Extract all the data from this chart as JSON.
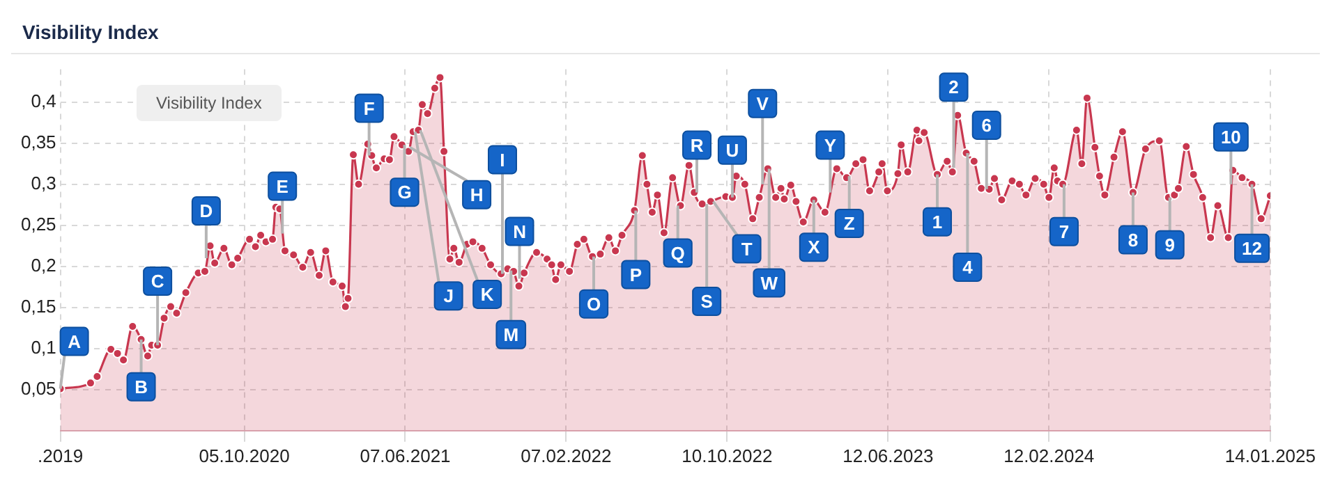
{
  "chart_data": {
    "type": "area",
    "title": "Visibility Index",
    "xlim": [
      "2019-12-30",
      "2025-01-14"
    ],
    "ylim": [
      0,
      0.44
    ],
    "xticks": [
      {
        "value": "2019-12-30",
        "label": ".2019"
      },
      {
        "value": "2020-10-05",
        "label": "05.10.2020"
      },
      {
        "value": "2021-06-07",
        "label": "07.06.2021"
      },
      {
        "value": "2022-02-07",
        "label": "07.02.2022"
      },
      {
        "value": "2022-10-10",
        "label": "10.10.2022"
      },
      {
        "value": "2023-06-12",
        "label": "12.06.2023"
      },
      {
        "value": "2024-02-12",
        "label": "12.02.2024"
      },
      {
        "value": "2025-01-14",
        "label": "14.01.2025"
      }
    ],
    "yticks": [
      {
        "value": 0.05,
        "label": "0,05"
      },
      {
        "value": 0.1,
        "label": "0,1"
      },
      {
        "value": 0.15,
        "label": "0,15"
      },
      {
        "value": 0.2,
        "label": "0,2"
      },
      {
        "value": 0.25,
        "label": "0,25"
      },
      {
        "value": 0.3,
        "label": "0,3"
      },
      {
        "value": 0.35,
        "label": "0,35"
      },
      {
        "value": 0.4,
        "label": "0,4"
      }
    ],
    "grid": true,
    "marker": "circle",
    "line_style": "solid",
    "x": [
      "2019-12-30",
      "2020-02-14",
      "2020-02-24",
      "2020-03-16",
      "2020-03-26",
      "2020-04-04",
      "2020-04-18",
      "2020-05-01",
      "2020-05-11",
      "2020-05-17",
      "2020-05-26",
      "2020-06-05",
      "2020-06-15",
      "2020-06-24",
      "2020-07-08",
      "2020-07-27",
      "2020-08-06",
      "2020-08-14",
      "2020-08-21",
      "2020-09-04",
      "2020-09-16",
      "2020-09-25",
      "2020-10-13",
      "2020-10-22",
      "2020-10-30",
      "2020-11-07",
      "2020-11-17",
      "2020-11-22",
      "2020-11-28",
      "2020-12-06",
      "2020-12-19",
      "2021-01-02",
      "2021-01-14",
      "2021-01-27",
      "2021-02-06",
      "2021-02-17",
      "2021-03-03",
      "2021-03-08",
      "2021-03-12",
      "2021-03-20",
      "2021-03-28",
      "2021-04-11",
      "2021-04-17",
      "2021-04-24",
      "2021-05-06",
      "2021-05-14",
      "2021-05-21",
      "2021-06-02",
      "2021-06-12",
      "2021-06-19",
      "2021-06-27",
      "2021-07-03",
      "2021-07-11",
      "2021-07-22",
      "2021-07-30",
      "2021-08-05",
      "2021-08-14",
      "2021-08-20",
      "2021-08-28",
      "2021-09-09",
      "2021-09-18",
      "2021-10-02",
      "2021-10-15",
      "2021-10-31",
      "2021-11-10",
      "2021-11-19",
      "2021-11-27",
      "2021-12-05",
      "2021-12-24",
      "2022-01-09",
      "2022-01-16",
      "2022-01-22",
      "2022-01-30",
      "2022-02-12",
      "2022-02-24",
      "2022-03-06",
      "2022-03-19",
      "2022-03-31",
      "2022-04-13",
      "2022-04-23",
      "2022-05-03",
      "2022-05-22",
      "2022-06-03",
      "2022-06-10",
      "2022-06-18",
      "2022-06-26",
      "2022-07-06",
      "2022-07-19",
      "2022-07-31",
      "2022-08-13",
      "2022-08-21",
      "2022-09-02",
      "2022-09-15",
      "2022-10-08",
      "2022-10-18",
      "2022-10-24",
      "2022-11-06",
      "2022-11-18",
      "2022-11-28",
      "2022-12-11",
      "2022-12-23",
      "2022-12-31",
      "2023-01-05",
      "2023-01-15",
      "2023-01-23",
      "2023-02-03",
      "2023-02-19",
      "2023-03-08",
      "2023-03-26",
      "2023-04-10",
      "2023-04-24",
      "2023-05-05",
      "2023-05-15",
      "2023-05-29",
      "2023-06-03",
      "2023-06-11",
      "2023-06-27",
      "2023-07-02",
      "2023-07-12",
      "2023-07-26",
      "2023-07-29",
      "2023-08-06",
      "2023-08-26",
      "2023-09-10",
      "2023-09-18",
      "2023-09-26",
      "2023-10-09",
      "2023-10-21",
      "2023-11-01",
      "2023-11-13",
      "2023-11-21",
      "2023-12-02",
      "2023-12-18",
      "2023-12-29",
      "2024-01-08",
      "2024-01-22",
      "2024-02-04",
      "2024-02-12",
      "2024-02-20",
      "2024-02-25",
      "2024-03-04",
      "2024-03-25",
      "2024-04-02",
      "2024-04-10",
      "2024-04-22",
      "2024-04-29",
      "2024-05-07",
      "2024-05-21",
      "2024-06-03",
      "2024-06-19",
      "2024-07-08",
      "2024-07-29",
      "2024-08-12",
      "2024-08-21",
      "2024-08-27",
      "2024-09-08",
      "2024-09-19",
      "2024-10-03",
      "2024-10-15",
      "2024-10-26",
      "2024-11-11",
      "2024-11-18",
      "2024-12-02",
      "2024-12-17",
      "2024-12-31",
      "2025-01-14"
    ],
    "series": [
      {
        "color": "#c8374f",
        "values": [
          0.051,
          0.058,
          0.066,
          0.099,
          0.094,
          0.086,
          0.127,
          0.111,
          0.091,
          0.104,
          0.104,
          0.137,
          0.151,
          0.143,
          0.168,
          0.192,
          0.194,
          0.225,
          0.204,
          0.222,
          0.202,
          0.21,
          0.233,
          0.224,
          0.238,
          0.23,
          0.233,
          0.272,
          0.27,
          0.219,
          0.214,
          0.199,
          0.217,
          0.189,
          0.219,
          0.181,
          0.176,
          0.151,
          0.161,
          0.336,
          0.3,
          0.349,
          0.335,
          0.32,
          0.331,
          0.33,
          0.358,
          0.348,
          0.34,
          0.364,
          0.366,
          0.397,
          0.386,
          0.417,
          0.43,
          0.34,
          0.209,
          0.222,
          0.205,
          0.227,
          0.23,
          0.222,
          0.202,
          0.191,
          0.197,
          0.194,
          0.176,
          0.192,
          0.217,
          0.209,
          0.202,
          0.184,
          0.202,
          0.194,
          0.227,
          0.233,
          0.212,
          0.215,
          0.235,
          0.219,
          0.238,
          0.268,
          0.335,
          0.3,
          0.266,
          0.287,
          0.241,
          0.308,
          0.274,
          0.323,
          0.29,
          0.276,
          0.279,
          0.285,
          0.284,
          0.31,
          0.3,
          0.258,
          0.284,
          0.319,
          0.284,
          0.295,
          0.282,
          0.299,
          0.279,
          0.254,
          0.281,
          0.266,
          0.319,
          0.308,
          0.325,
          0.33,
          0.292,
          0.315,
          0.325,
          0.292,
          0.313,
          0.348,
          0.315,
          0.366,
          0.353,
          0.363,
          0.312,
          0.328,
          0.315,
          0.384,
          0.338,
          0.328,
          0.295,
          0.294,
          0.307,
          0.281,
          0.304,
          0.3,
          0.287,
          0.307,
          0.3,
          0.284,
          0.32,
          0.304,
          0.3,
          0.366,
          0.325,
          0.405,
          0.345,
          0.31,
          0.287,
          0.333,
          0.364,
          0.29,
          0.343,
          0.353,
          0.284,
          0.287,
          0.295,
          0.346,
          0.312,
          0.284,
          0.235,
          0.274,
          0.235,
          0.317,
          0.308,
          0.3,
          0.258,
          0.286
        ]
      }
    ],
    "annotations": [
      "Visibility Index",
      {
        "text": "A",
        "x": "2019-12-30",
        "y": 0.051
      },
      {
        "text": "B",
        "x": "2020-05-01",
        "y": 0.111
      },
      {
        "text": "C",
        "x": "2020-05-26",
        "y": 0.104
      },
      {
        "text": "D",
        "x": "2020-08-08",
        "y": 0.21
      },
      {
        "text": "E",
        "x": "2020-12-02",
        "y": 0.24
      },
      {
        "text": "F",
        "x": "2021-04-13",
        "y": 0.335
      },
      {
        "text": "G",
        "x": "2021-06-06",
        "y": 0.348
      },
      {
        "text": "H",
        "x": "2021-06-14",
        "y": 0.345
      },
      {
        "text": "J",
        "x": "2021-06-22",
        "y": 0.364
      },
      {
        "text": "K",
        "x": "2021-06-30",
        "y": 0.366
      },
      {
        "text": "I",
        "x": "2021-11-02",
        "y": 0.191
      },
      {
        "text": "M",
        "x": "2021-11-15",
        "y": 0.195
      },
      {
        "text": "N",
        "x": "2021-11-28",
        "y": 0.185
      },
      {
        "text": "O",
        "x": "2022-03-21",
        "y": 0.212
      },
      {
        "text": "P",
        "x": "2022-05-24",
        "y": 0.268
      },
      {
        "text": "Q",
        "x": "2022-07-27",
        "y": 0.274
      },
      {
        "text": "R",
        "x": "2022-08-25",
        "y": 0.29
      },
      {
        "text": "S",
        "x": "2022-09-09",
        "y": 0.276
      },
      {
        "text": "T",
        "x": "2022-09-19",
        "y": 0.279
      },
      {
        "text": "U",
        "x": "2022-10-18",
        "y": 0.284
      },
      {
        "text": "V",
        "x": "2022-12-03",
        "y": 0.3
      },
      {
        "text": "W",
        "x": "2022-12-13",
        "y": 0.319
      },
      {
        "text": "X",
        "x": "2023-02-19",
        "y": 0.281
      },
      {
        "text": "Y",
        "x": "2023-03-16",
        "y": 0.29
      },
      {
        "text": "Z",
        "x": "2023-04-14",
        "y": 0.31
      },
      {
        "text": "1",
        "x": "2023-08-26",
        "y": 0.312
      },
      {
        "text": "2",
        "x": "2023-09-20",
        "y": 0.32
      },
      {
        "text": "4",
        "x": "2023-10-11",
        "y": 0.338
      },
      {
        "text": "6",
        "x": "2023-11-09",
        "y": 0.294
      },
      {
        "text": "7",
        "x": "2024-03-06",
        "y": 0.3
      },
      {
        "text": "8",
        "x": "2024-06-19",
        "y": 0.29
      },
      {
        "text": "9",
        "x": "2024-08-14",
        "y": 0.284
      },
      {
        "text": "10",
        "x": "2024-11-15",
        "y": 0.3
      },
      {
        "text": "12",
        "x": "2024-12-17",
        "y": 0.3
      }
    ]
  }
}
